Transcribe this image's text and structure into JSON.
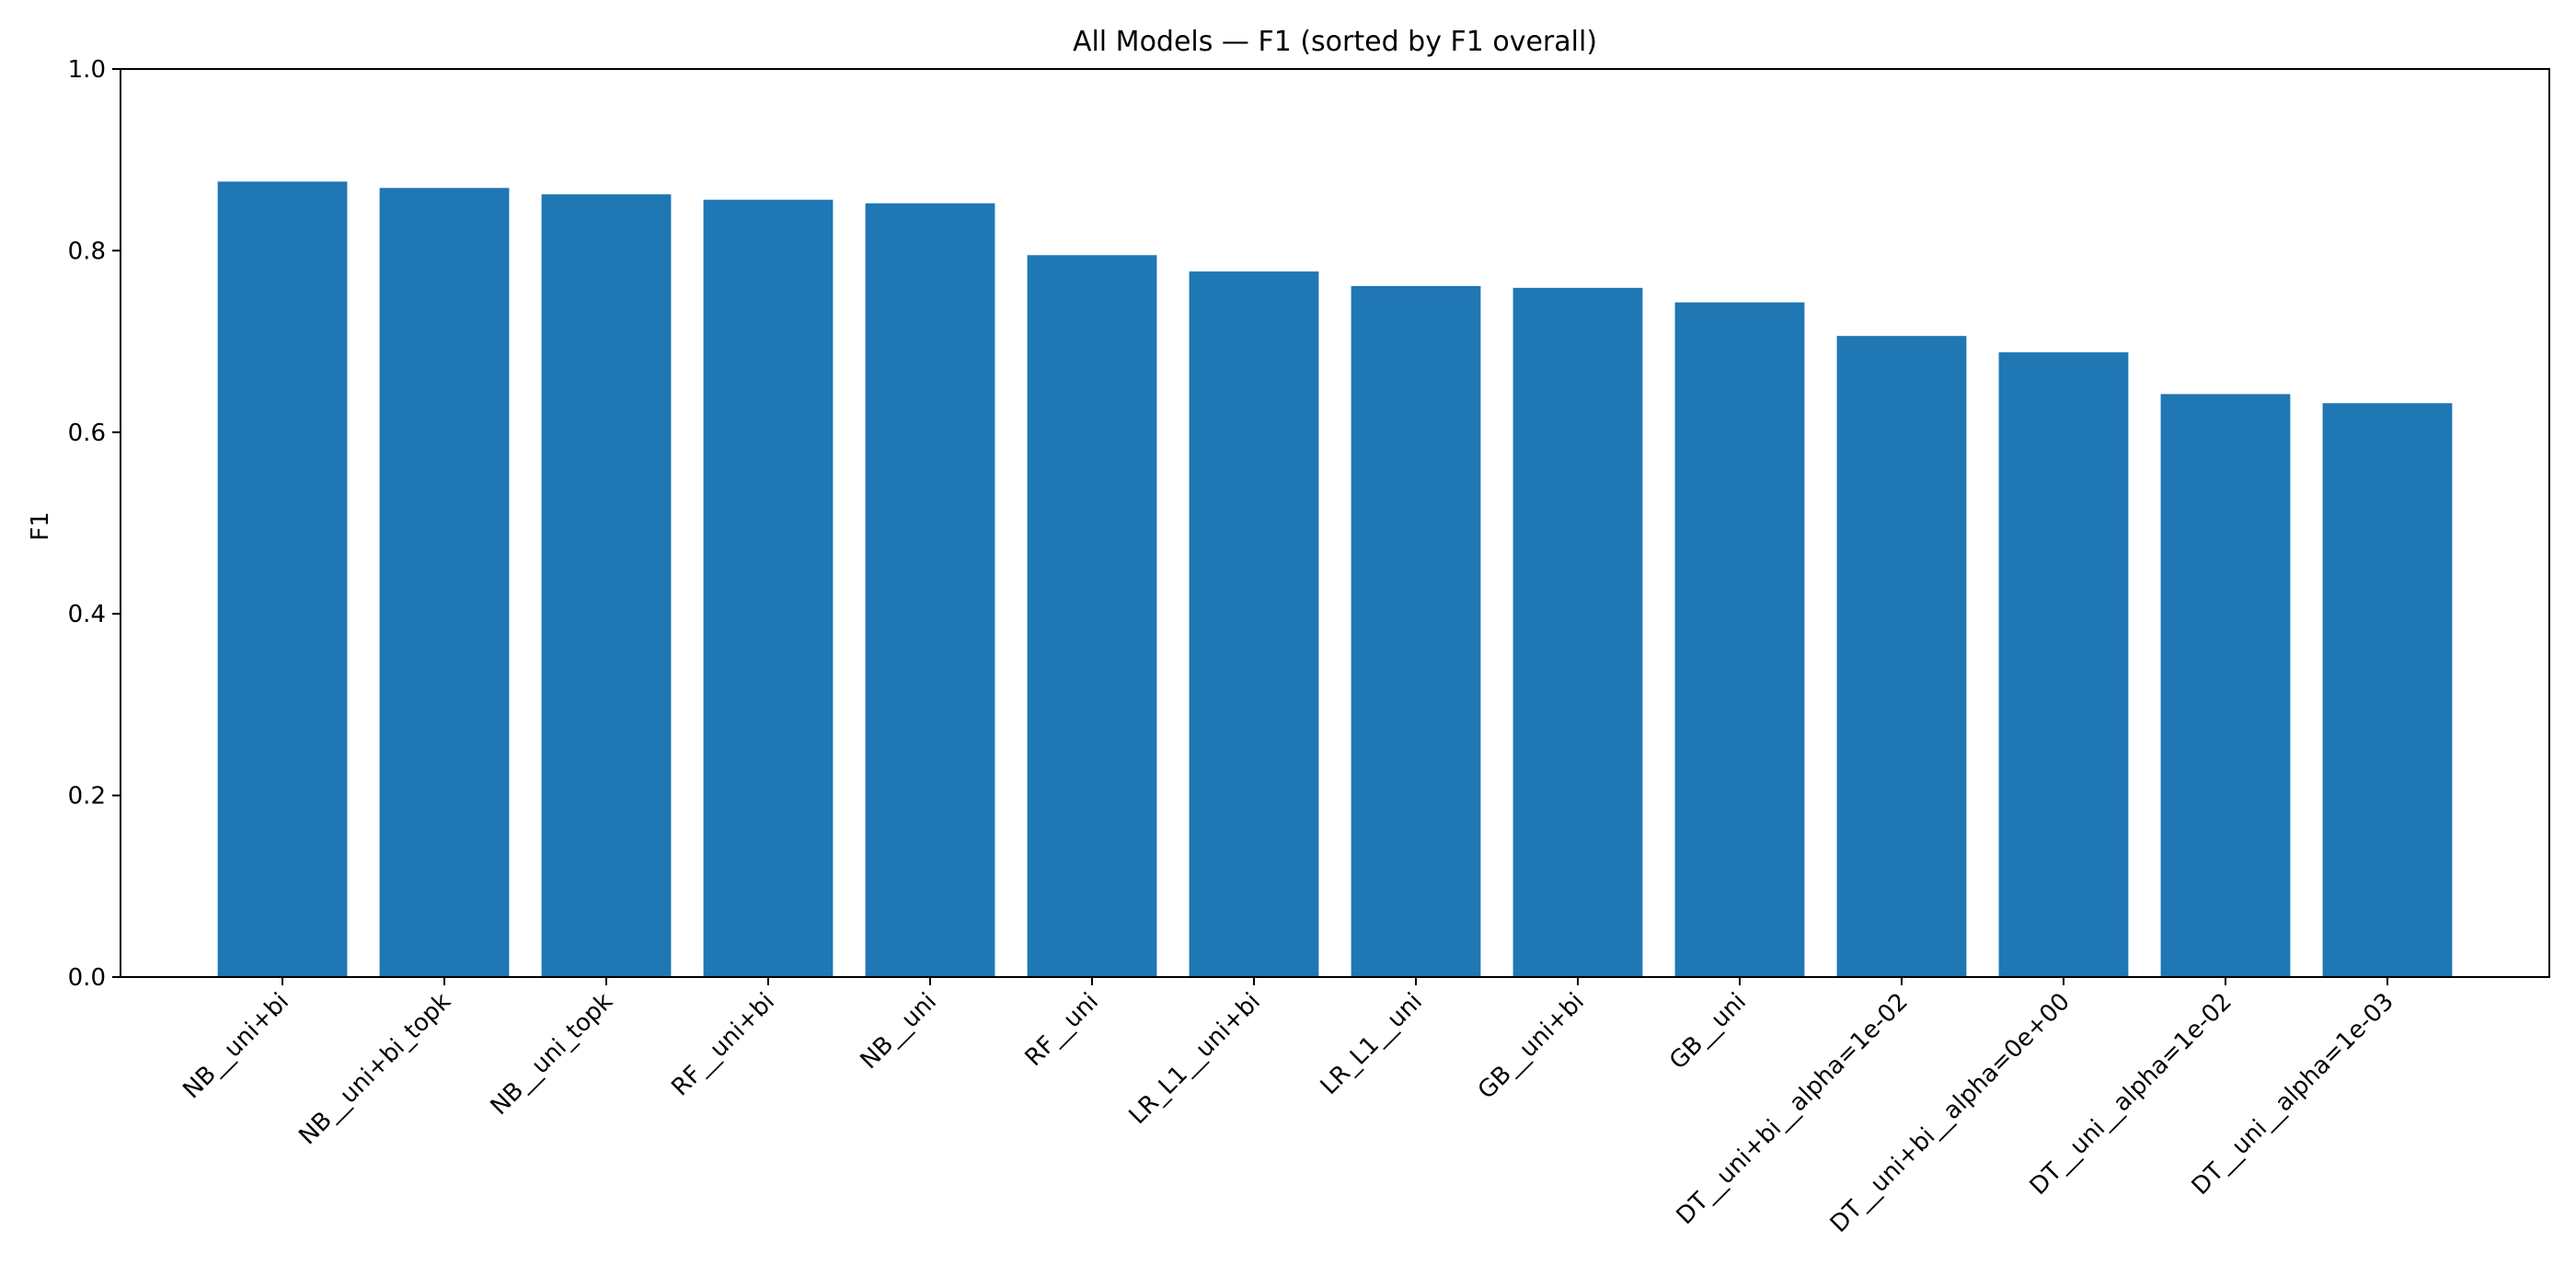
{
  "chart_data": {
    "type": "bar",
    "title": "All Models — F1 (sorted by F1 overall)",
    "xlabel": "",
    "ylabel": "F1",
    "ylim": [
      0,
      1.0
    ],
    "yticks": [
      "0.0",
      "0.2",
      "0.4",
      "0.6",
      "0.8",
      "1.0"
    ],
    "categories": [
      "NB__uni+bi",
      "NB__uni+bi_topk",
      "NB__uni_topk",
      "RF__uni+bi",
      "NB__uni",
      "RF__uni",
      "LR_L1__uni+bi",
      "LR_L1__uni",
      "GB__uni+bi",
      "GB__uni",
      "DT__uni+bi__alpha=1e-02",
      "DT__uni+bi__alpha=0e+00",
      "DT__uni__alpha=1e-02",
      "DT__uni__alpha=1e-03"
    ],
    "values": [
      0.876,
      0.869,
      0.862,
      0.856,
      0.852,
      0.795,
      0.777,
      0.761,
      0.759,
      0.743,
      0.706,
      0.688,
      0.642,
      0.632
    ],
    "bar_color": "#1f77b4",
    "grid": false,
    "legend": "none"
  }
}
